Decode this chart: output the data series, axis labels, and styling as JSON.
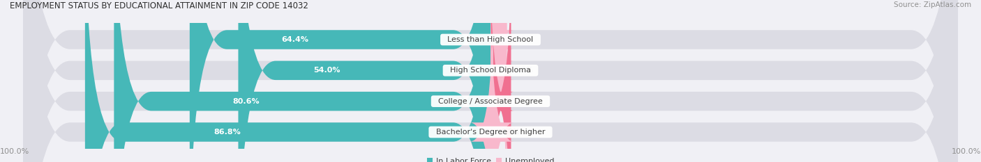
{
  "title": "EMPLOYMENT STATUS BY EDUCATIONAL ATTAINMENT IN ZIP CODE 14032",
  "source": "Source: ZipAtlas.com",
  "categories": [
    "Less than High School",
    "High School Diploma",
    "College / Associate Degree",
    "Bachelor's Degree or higher"
  ],
  "in_labor_force": [
    64.4,
    54.0,
    80.6,
    86.8
  ],
  "unemployed": [
    0.0,
    0.0,
    4.4,
    0.6
  ],
  "labor_force_color": "#46b8b8",
  "unemployed_color": "#f07090",
  "unemployed_color_light": "#f8b8cc",
  "bar_bg_color": "#dcdce4",
  "background_color": "#f0f0f5",
  "title_color": "#303030",
  "label_color": "#404040",
  "axis_label_color": "#909090",
  "x_left_label": "100.0%",
  "x_right_label": "100.0%"
}
